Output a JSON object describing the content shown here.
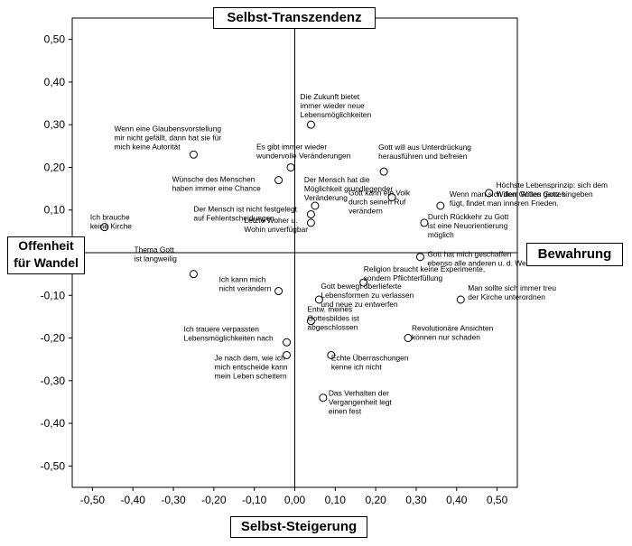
{
  "chart_data": {
    "type": "scatter",
    "title": "",
    "xlabel": "",
    "ylabel": "",
    "xlim": [
      -0.55,
      0.55
    ],
    "ylim": [
      -0.55,
      0.55
    ],
    "xticks": [
      -0.5,
      -0.4,
      -0.3,
      -0.2,
      -0.1,
      0.0,
      0.1,
      0.2,
      0.3,
      0.4,
      0.5
    ],
    "yticks": [
      -0.5,
      -0.4,
      -0.3,
      -0.2,
      -0.1,
      0.0,
      0.1,
      0.2,
      0.3,
      0.4,
      0.5
    ],
    "xtick_labels": [
      "-0,50",
      "-0,40",
      "-0,30",
      "-0,20",
      "-0,10",
      "0,00",
      "0,10",
      "0,20",
      "0,30",
      "0,40",
      "0,50"
    ],
    "ytick_labels": [
      "-0,50",
      "-0,40",
      "-0,30",
      "-0,20",
      "-0,10",
      "0,00",
      "0,10",
      "0,20",
      "0,30",
      "0,40",
      "0,50"
    ],
    "grid": false,
    "reference_lines": {
      "x": 0,
      "y": 0
    },
    "axis_labels": {
      "top": "Selbst-Transzendenz",
      "bottom": "Selbst-Steigerung",
      "left": [
        "Offenheit",
        "für Wandel"
      ],
      "right": "Bewahrung"
    },
    "points": [
      {
        "x": 0.04,
        "y": 0.3,
        "label": [
          "Die Zukunft bietet",
          "immer wieder neue",
          "Lebensmöglichkeiten"
        ]
      },
      {
        "x": -0.25,
        "y": 0.23,
        "label": [
          "Wenn eine Glaubensvorstellung",
          "mir nicht gefällt, dann hat sie für",
          "mich keine Autorität"
        ]
      },
      {
        "x": -0.01,
        "y": 0.2,
        "label": [
          "Es gibt immer wieder",
          "wundervolle Veränderungen"
        ]
      },
      {
        "x": 0.22,
        "y": 0.19,
        "label": [
          "Gott will aus Unterdrückung",
          "herausführen und befreien"
        ]
      },
      {
        "x": -0.04,
        "y": 0.17,
        "label": [
          "Wünsche des Menschen",
          "haben immer eine Chance"
        ]
      },
      {
        "x": 0.48,
        "y": 0.14,
        "label": [
          "Höchste Lebensprinzip: sich dem",
          "Willen Gottes ganz hingeben"
        ]
      },
      {
        "x": 0.24,
        "y": 0.13,
        "label": [
          "Gott kann ein Volk",
          "durch seinen Ruf",
          "verändern"
        ]
      },
      {
        "x": 0.05,
        "y": 0.11,
        "label": [
          "Der Mensch hat die",
          "Möglichkeit grundlegender",
          "Veränderung"
        ]
      },
      {
        "x": 0.36,
        "y": 0.11,
        "label": [
          "Wenn man sich dem Willen Gottes",
          "fügt, findet man inneren Frieden."
        ]
      },
      {
        "x": 0.04,
        "y": 0.09,
        "label": [
          "Der Mensch ist nicht festgelegt",
          "auf Fehlentscheidungen"
        ]
      },
      {
        "x": 0.04,
        "y": 0.07,
        "label": [
          "Letzte Woher u.",
          "Wohin unverfügbar"
        ]
      },
      {
        "x": 0.32,
        "y": 0.07,
        "label": [
          "Durch Rückkehr zu Gott",
          "ist eine Neuorientierung",
          "möglich"
        ]
      },
      {
        "x": -0.47,
        "y": 0.06,
        "label": [
          "Ich brauche",
          "keine Kirche"
        ]
      },
      {
        "x": 0.31,
        "y": -0.01,
        "label": [
          "Gott hat mich geschaffen",
          "ebenso alle anderen u. d. Welt"
        ]
      },
      {
        "x": -0.25,
        "y": -0.05,
        "label": [
          "Thema Gott",
          "ist langweilig"
        ]
      },
      {
        "x": 0.17,
        "y": -0.07,
        "label": [
          "Religion braucht keine Experimente,",
          "sondern Pflichterfüllung"
        ]
      },
      {
        "x": -0.04,
        "y": -0.09,
        "label": [
          "Ich kann mich",
          "nicht verändern"
        ]
      },
      {
        "x": 0.06,
        "y": -0.11,
        "label": [
          "Gott bewegt überlieferte",
          "Lebensformen zu verlassen",
          "und neue zu entwerfen"
        ]
      },
      {
        "x": 0.41,
        "y": -0.11,
        "label": [
          "Man sollte sich immer treu",
          "der Kirche unterordnen"
        ]
      },
      {
        "x": 0.04,
        "y": -0.16,
        "label": [
          "Entw. meines",
          "Gottesbildes ist",
          "abgeschlossen"
        ]
      },
      {
        "x": 0.28,
        "y": -0.2,
        "label": [
          "Revolutionäre Ansichten",
          "können nur schaden"
        ]
      },
      {
        "x": -0.02,
        "y": -0.21,
        "label": [
          "Ich trauere verpassten",
          "Lebensmöglichkeiten nach"
        ]
      },
      {
        "x": 0.09,
        "y": -0.24,
        "label": [
          "Echte Überraschungen",
          "kenne ich nicht"
        ]
      },
      {
        "x": -0.02,
        "y": -0.24,
        "label": [
          "Je nach dem, wie ich",
          "mich entscheide kann",
          "mein Leben scheitern"
        ]
      },
      {
        "x": 0.07,
        "y": -0.34,
        "label": [
          "Das Verhalten der",
          "Vergangenheit legt",
          "einen fest"
        ]
      }
    ]
  }
}
